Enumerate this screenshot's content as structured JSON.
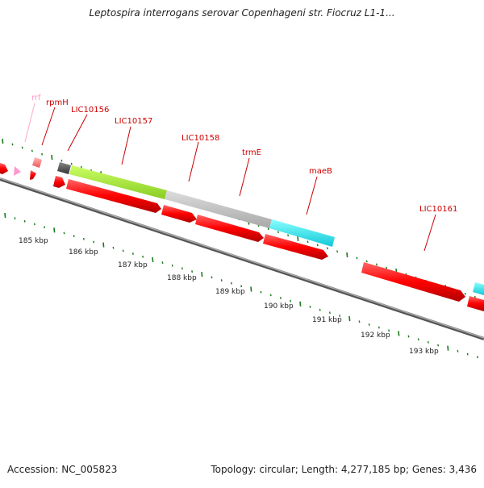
{
  "title": "Leptospira interrogans serovar Copenhageni str. Fiocruz L1-1...",
  "accession": "Accession: NC_005823",
  "summary": "Topology: circular; Length: 4,277,185 bp; Genes: 3,436",
  "colors": {
    "forward_strand": "#ff0000",
    "backbone": "#808080",
    "tick": "#1a7a1a",
    "gene_label": "#cc0000",
    "rrf_label": "#ff99cc",
    "rpmH": "#ff7777",
    "LIC10156": "#555555",
    "LIC10157": "#a8ee33",
    "LIC10158": "#c0c0c0",
    "trmE": "#c0c0c0",
    "maeB": "#22e6ee"
  },
  "gene_labels": [
    {
      "id": "rrf",
      "text": "rrf"
    },
    {
      "id": "rpmH",
      "text": "rpmH"
    },
    {
      "id": "LIC10156",
      "text": "LIC10156"
    },
    {
      "id": "LIC10157",
      "text": "LIC10157"
    },
    {
      "id": "LIC10158",
      "text": "LIC10158"
    },
    {
      "id": "trmE",
      "text": "trmE"
    },
    {
      "id": "maeB",
      "text": "maeB"
    },
    {
      "id": "LIC10161",
      "text": "LIC10161"
    }
  ],
  "scale_labels": [
    "185 kbp",
    "186 kbp",
    "187 kbp",
    "188 kbp",
    "189 kbp",
    "190 kbp",
    "191 kbp",
    "192 kbp",
    "193 kbp"
  ]
}
